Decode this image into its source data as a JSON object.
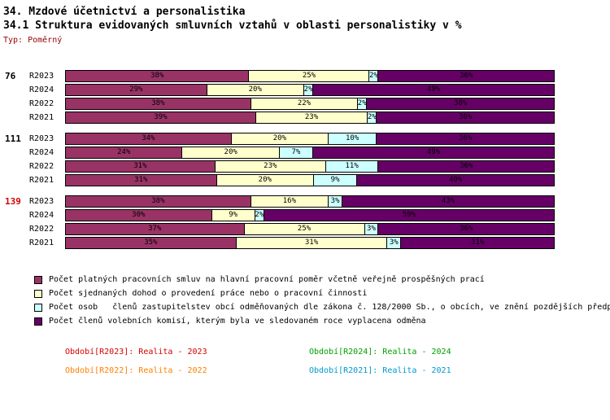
{
  "header": {
    "title_line1": "34. Mzdové účetnictví a personalistika",
    "title_line2": "34.1 Struktura evidovaných smluvních vztahů v oblasti personalistiky v %",
    "type_label": "Typ: Poměrný",
    "type_label_color": "#990000"
  },
  "chart_data": {
    "type": "bar",
    "stacked": true,
    "orientation": "horizontal",
    "unit": "%",
    "value_range": [
      0,
      100
    ],
    "series_colors": [
      "#993366",
      "#FFFFCC",
      "#CCFFFF",
      "#660066"
    ],
    "series_names": [
      "Počet platných pracovních smluv na hlavní pracovní poměr včetně veřejně prospěšných prací",
      "Počet sjednaných dohod o provedení práce nebo o pracovní činnosti",
      "Počet osob   členů zastupitelstev obcí odměňovaných dle zákona č. 128/2000 Sb., o obcích, ve znění pozdějších předp",
      "Počet členů volebních komisí, kterým byla ve sledovaném roce vyplacena odměna"
    ],
    "groups": [
      {
        "label": "76",
        "label_color": "#000000",
        "rows": [
          {
            "period": "R2023",
            "values": [
              38,
              25,
              2,
              36
            ]
          },
          {
            "period": "R2024",
            "values": [
              29,
              20,
              2,
              49
            ]
          },
          {
            "period": "R2022",
            "values": [
              38,
              22,
              2,
              38
            ]
          },
          {
            "period": "R2021",
            "values": [
              39,
              23,
              2,
              36
            ]
          }
        ]
      },
      {
        "label": "111",
        "label_color": "#000000",
        "rows": [
          {
            "period": "R2023",
            "values": [
              34,
              20,
              10,
              36
            ]
          },
          {
            "period": "R2024",
            "values": [
              24,
              20,
              7,
              49
            ]
          },
          {
            "period": "R2022",
            "values": [
              31,
              23,
              11,
              36
            ]
          },
          {
            "period": "R2021",
            "values": [
              31,
              20,
              9,
              40
            ]
          }
        ]
      },
      {
        "label": "139",
        "label_color": "#D40000",
        "rows": [
          {
            "period": "R2023",
            "values": [
              38,
              16,
              3,
              43
            ]
          },
          {
            "period": "R2024",
            "values": [
              30,
              9,
              2,
              59
            ]
          },
          {
            "period": "R2022",
            "values": [
              37,
              25,
              3,
              36
            ]
          },
          {
            "period": "R2021",
            "values": [
              35,
              31,
              3,
              31
            ]
          }
        ]
      }
    ]
  },
  "legend": [
    {
      "color": "#993366",
      "label": "Počet platných pracovních smluv na hlavní pracovní poměr včetně veřejně prospěšných prací"
    },
    {
      "color": "#FFFFCC",
      "label": "Počet sjednaných dohod o provedení práce nebo o pracovní činnosti"
    },
    {
      "color": "#CCFFFF",
      "label": "Počet osob   členů zastupitelstev obcí odměňovaných dle zákona č. 128/2000 Sb., o obcích, ve znění pozdějších předp"
    },
    {
      "color": "#660066",
      "label": "Počet členů volebních komisí, kterým byla ve sledovaném roce vyplacena odměna"
    }
  ],
  "period_legend": [
    {
      "label": "Období[R2023]: Realita - 2023",
      "color": "#D40000"
    },
    {
      "label": "Období[R2024]: Realita - 2024",
      "color": "#00A000"
    },
    {
      "label": "Období[R2022]: Realita - 2022",
      "color": "#FF8000"
    },
    {
      "label": "Období[R2021]: Realita - 2021",
      "color": "#0099CC"
    }
  ]
}
